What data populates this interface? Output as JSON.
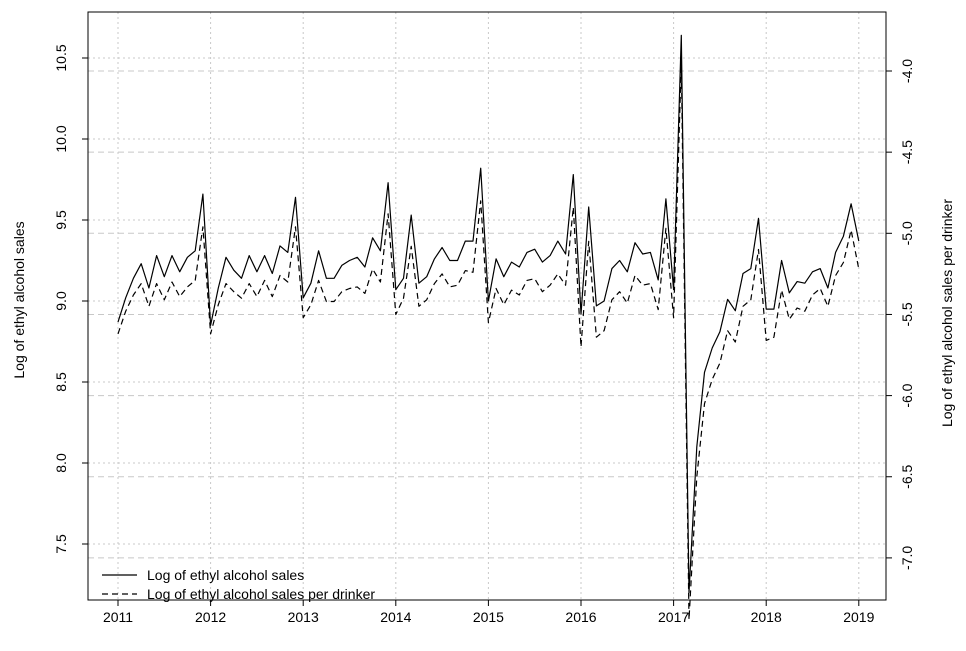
{
  "chart_data": {
    "type": "line",
    "title": "",
    "xlabel": "",
    "ylabel": "Log of ethyl alcohol sales",
    "y2label": "Log of ethyl alcohol sales per drinker",
    "xlim": [
      2011,
      2019
    ],
    "xticks": [
      "2011",
      "2012",
      "2013",
      "2014",
      "2015",
      "2016",
      "2017",
      "2018",
      "2019"
    ],
    "ylim": [
      7.4,
      10.75
    ],
    "yticks": [
      "7.5",
      "8.0",
      "8.5",
      "9.0",
      "9.5",
      "10.0",
      "10.5"
    ],
    "y2lim": [
      -7.28,
      -3.72
    ],
    "y2ticks": [
      "-7.0",
      "-6.5",
      "-6.0",
      "-5.5",
      "-5.0",
      "-4.5",
      "-4.0"
    ],
    "grid": true,
    "legend_position": "bottom-left",
    "colors": {
      "line": "#000000",
      "grid": "#c8c8c8",
      "axis": "#000000"
    },
    "x_months": [
      "2011-01",
      "2011-02",
      "2011-03",
      "2011-04",
      "2011-05",
      "2011-06",
      "2011-07",
      "2011-08",
      "2011-09",
      "2011-10",
      "2011-11",
      "2011-12",
      "2012-01",
      "2012-02",
      "2012-03",
      "2012-04",
      "2012-05",
      "2012-06",
      "2012-07",
      "2012-08",
      "2012-09",
      "2012-10",
      "2012-11",
      "2012-12",
      "2013-01",
      "2013-02",
      "2013-03",
      "2013-04",
      "2013-05",
      "2013-06",
      "2013-07",
      "2013-08",
      "2013-09",
      "2013-10",
      "2013-11",
      "2013-12",
      "2014-01",
      "2014-02",
      "2014-03",
      "2014-04",
      "2014-05",
      "2014-06",
      "2014-07",
      "2014-08",
      "2014-09",
      "2014-10",
      "2014-11",
      "2014-12",
      "2015-01",
      "2015-02",
      "2015-03",
      "2015-04",
      "2015-05",
      "2015-06",
      "2015-07",
      "2015-08",
      "2015-09",
      "2015-10",
      "2015-11",
      "2015-12",
      "2016-01",
      "2016-02",
      "2016-03",
      "2016-04",
      "2016-05",
      "2016-06",
      "2016-07",
      "2016-08",
      "2016-09",
      "2016-10",
      "2016-11",
      "2016-12",
      "2017-01",
      "2017-02",
      "2017-03",
      "2017-04",
      "2017-05",
      "2017-06",
      "2017-07",
      "2017-08",
      "2017-09",
      "2017-10",
      "2017-11",
      "2017-12",
      "2018-01",
      "2018-02",
      "2018-03",
      "2018-04",
      "2018-05",
      "2018-06",
      "2018-07",
      "2018-08",
      "2018-09",
      "2018-10",
      "2018-11",
      "2018-12",
      "2019-01"
    ],
    "series": [
      {
        "name": "Log of ethyl alcohol sales",
        "axis": "left",
        "style": "solid",
        "values": [
          8.87,
          9.02,
          9.14,
          9.23,
          9.08,
          9.28,
          9.15,
          9.28,
          9.18,
          9.27,
          9.31,
          9.66,
          8.85,
          9.08,
          9.27,
          9.19,
          9.14,
          9.28,
          9.18,
          9.28,
          9.17,
          9.34,
          9.3,
          9.64,
          9.02,
          9.11,
          9.31,
          9.14,
          9.14,
          9.22,
          9.25,
          9.27,
          9.21,
          9.39,
          9.31,
          9.73,
          9.07,
          9.14,
          9.53,
          9.11,
          9.15,
          9.26,
          9.33,
          9.25,
          9.25,
          9.37,
          9.37,
          9.82,
          9.0,
          9.26,
          9.15,
          9.24,
          9.21,
          9.3,
          9.32,
          9.24,
          9.28,
          9.37,
          9.29,
          9.78,
          8.92,
          9.58,
          8.97,
          9.0,
          9.2,
          9.25,
          9.18,
          9.36,
          9.29,
          9.3,
          9.13,
          9.63,
          9.07,
          10.64,
          7.2,
          8.1,
          8.56,
          8.71,
          8.81,
          9.01,
          8.94,
          9.17,
          9.2,
          9.51,
          8.95,
          8.95,
          9.25,
          9.05,
          9.12,
          9.11,
          9.18,
          9.2,
          9.08,
          9.3,
          9.4,
          9.6,
          9.37
        ]
      },
      {
        "name": "Log of ethyl alcohol sales per drinker",
        "axis": "right",
        "style": "dashed",
        "values": [
          -5.62,
          -5.48,
          -5.38,
          -5.31,
          -5.45,
          -5.31,
          -5.41,
          -5.3,
          -5.39,
          -5.33,
          -5.29,
          -4.96,
          -5.62,
          -5.44,
          -5.31,
          -5.36,
          -5.4,
          -5.31,
          -5.39,
          -5.29,
          -5.39,
          -5.26,
          -5.3,
          -4.96,
          -5.52,
          -5.44,
          -5.29,
          -5.42,
          -5.42,
          -5.36,
          -5.34,
          -5.33,
          -5.37,
          -5.22,
          -5.3,
          -4.88,
          -5.5,
          -5.4,
          -5.08,
          -5.45,
          -5.41,
          -5.31,
          -5.25,
          -5.33,
          -5.32,
          -5.23,
          -5.24,
          -4.8,
          -5.55,
          -5.34,
          -5.44,
          -5.35,
          -5.38,
          -5.29,
          -5.28,
          -5.36,
          -5.32,
          -5.25,
          -5.32,
          -4.84,
          -5.7,
          -5.05,
          -5.64,
          -5.6,
          -5.41,
          -5.36,
          -5.43,
          -5.26,
          -5.32,
          -5.31,
          -5.47,
          -4.97,
          -5.52,
          -3.95,
          -7.38,
          -6.5,
          -6.05,
          -5.9,
          -5.8,
          -5.6,
          -5.67,
          -5.45,
          -5.41,
          -5.1,
          -5.66,
          -5.64,
          -5.35,
          -5.53,
          -5.46,
          -5.48,
          -5.38,
          -5.34,
          -5.45,
          -5.26,
          -5.18,
          -4.98,
          -5.22
        ]
      }
    ]
  }
}
